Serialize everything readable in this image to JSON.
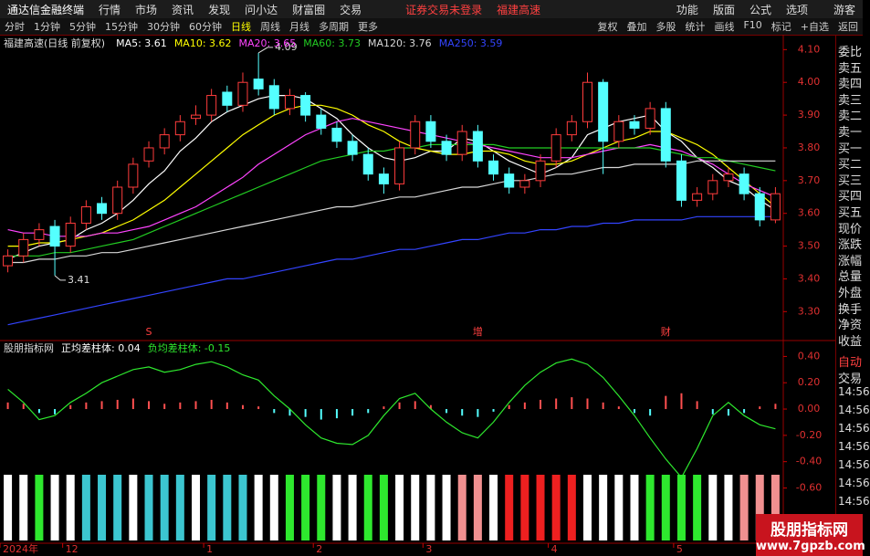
{
  "menu": {
    "logo": "通达信金融终端",
    "items": [
      "行情",
      "市场",
      "资讯",
      "发现",
      "问小达",
      "财富圈",
      "交易"
    ],
    "notice": "证券交易未登录",
    "stock": "福建高速",
    "right": [
      "功能",
      "版面",
      "公式",
      "选项"
    ],
    "user": "游客"
  },
  "toolbar": {
    "periods": [
      "分时",
      "1分钟",
      "5分钟",
      "15分钟",
      "30分钟",
      "60分钟",
      "日线",
      "周线",
      "月线",
      "多周期",
      "更多"
    ],
    "active": 6,
    "tools": [
      "复权",
      "叠加",
      "多股",
      "统计",
      "画线",
      "F10",
      "标记",
      "+自选",
      "返回"
    ]
  },
  "chart_data": [
    {
      "type": "candlestick",
      "title": "福建高速(日线 前复权)",
      "categories": [
        "2024年",
        null,
        null,
        null,
        "12",
        null,
        null,
        null,
        null,
        null,
        null,
        null,
        null,
        "1",
        null,
        null,
        null,
        null,
        null,
        null,
        "2",
        null,
        null,
        null,
        null,
        null,
        null,
        "3",
        null,
        null,
        null,
        null,
        null,
        null,
        null,
        "4",
        null,
        null,
        null,
        null,
        null,
        null,
        null,
        "5",
        null,
        null,
        null,
        null,
        null,
        null
      ],
      "opens": [
        3.44,
        3.47,
        3.52,
        3.56,
        3.5,
        3.57,
        3.63,
        3.6,
        3.68,
        3.76,
        3.8,
        3.84,
        3.89,
        3.9,
        3.97,
        3.93,
        4.01,
        3.99,
        3.92,
        3.96,
        3.9,
        3.86,
        3.82,
        3.78,
        3.72,
        3.69,
        3.8,
        3.88,
        3.82,
        3.78,
        3.85,
        3.76,
        3.72,
        3.68,
        3.7,
        3.76,
        3.84,
        3.88,
        4.0,
        3.82,
        3.88,
        3.86,
        3.92,
        3.76,
        3.64,
        3.66,
        3.7,
        3.72,
        3.66,
        3.58
      ],
      "highs": [
        3.49,
        3.54,
        3.57,
        3.58,
        3.59,
        3.64,
        3.65,
        3.7,
        3.77,
        3.82,
        3.86,
        3.9,
        3.93,
        3.98,
        3.99,
        4.03,
        4.09,
        4.01,
        3.98,
        3.97,
        3.92,
        3.88,
        3.84,
        3.8,
        3.74,
        3.82,
        3.9,
        3.9,
        3.84,
        3.87,
        3.87,
        3.78,
        3.74,
        3.72,
        3.78,
        3.86,
        3.9,
        4.03,
        4.01,
        3.9,
        3.9,
        3.94,
        3.94,
        3.78,
        3.68,
        3.72,
        3.74,
        3.74,
        3.68,
        3.68
      ],
      "lows": [
        3.42,
        3.45,
        3.5,
        3.41,
        3.48,
        3.55,
        3.58,
        3.58,
        3.66,
        3.74,
        3.78,
        3.82,
        3.87,
        3.88,
        3.91,
        3.91,
        3.96,
        3.9,
        3.9,
        3.88,
        3.84,
        3.8,
        3.76,
        3.7,
        3.66,
        3.67,
        3.78,
        3.8,
        3.76,
        3.76,
        3.74,
        3.7,
        3.66,
        3.66,
        3.68,
        3.74,
        3.82,
        3.86,
        3.72,
        3.8,
        3.84,
        3.84,
        3.74,
        3.62,
        3.62,
        3.64,
        3.68,
        3.64,
        3.56,
        3.57
      ],
      "closes": [
        3.47,
        3.52,
        3.55,
        3.5,
        3.57,
        3.62,
        3.6,
        3.68,
        3.75,
        3.8,
        3.84,
        3.88,
        3.9,
        3.96,
        3.93,
        4.0,
        3.98,
        3.92,
        3.96,
        3.9,
        3.86,
        3.82,
        3.78,
        3.72,
        3.69,
        3.8,
        3.88,
        3.82,
        3.78,
        3.85,
        3.76,
        3.72,
        3.68,
        3.7,
        3.76,
        3.84,
        3.88,
        4.0,
        3.82,
        3.88,
        3.86,
        3.92,
        3.76,
        3.64,
        3.66,
        3.7,
        3.72,
        3.66,
        3.58,
        3.66
      ],
      "high_labels": [
        null,
        null,
        null,
        null,
        null,
        null,
        null,
        null,
        null,
        null,
        null,
        null,
        null,
        null,
        null,
        null,
        "4.09",
        null,
        null,
        null,
        null,
        null,
        null,
        null,
        null,
        null,
        null,
        null,
        null,
        null,
        null,
        null,
        null,
        null,
        null,
        null,
        null,
        null,
        null,
        null,
        null,
        null,
        null,
        null,
        null,
        null,
        null,
        null,
        null,
        null
      ],
      "low_labels": [
        null,
        null,
        null,
        "3.41",
        null,
        null,
        null,
        null,
        null,
        null,
        null,
        null,
        null,
        null,
        null,
        null,
        null,
        null,
        null,
        null,
        null,
        null,
        null,
        null,
        null,
        null,
        null,
        null,
        null,
        null,
        null,
        null,
        null,
        null,
        null,
        null,
        null,
        null,
        null,
        null,
        null,
        null,
        null,
        null,
        null,
        null,
        null,
        null,
        null,
        null
      ],
      "event_labels": [
        null,
        null,
        null,
        null,
        null,
        null,
        null,
        null,
        null,
        "S",
        null,
        null,
        null,
        null,
        null,
        null,
        null,
        null,
        null,
        null,
        null,
        null,
        null,
        null,
        null,
        null,
        null,
        null,
        null,
        null,
        "增",
        null,
        null,
        null,
        null,
        null,
        null,
        null,
        null,
        null,
        null,
        null,
        "财",
        null,
        null,
        null,
        null,
        null,
        null,
        null
      ],
      "up_color": "#ff3c3c",
      "down_color": "#54ffff",
      "series": [
        {
          "name": "MA5: 3.61",
          "color": "#ffffff",
          "values": [
            3.46,
            3.48,
            3.5,
            3.51,
            3.52,
            3.55,
            3.57,
            3.6,
            3.64,
            3.69,
            3.73,
            3.79,
            3.83,
            3.88,
            3.91,
            3.93,
            3.95,
            3.96,
            3.96,
            3.95,
            3.92,
            3.89,
            3.84,
            3.8,
            3.77,
            3.76,
            3.77,
            3.79,
            3.79,
            3.83,
            3.82,
            3.79,
            3.76,
            3.74,
            3.72,
            3.74,
            3.77,
            3.84,
            3.86,
            3.88,
            3.89,
            3.9,
            3.85,
            3.82,
            3.77,
            3.74,
            3.7,
            3.68,
            3.64,
            3.61
          ]
        },
        {
          "name": "MA10: 3.62",
          "color": "#ffff00",
          "values": [
            3.5,
            3.5,
            3.51,
            3.51,
            3.52,
            3.53,
            3.54,
            3.56,
            3.58,
            3.61,
            3.64,
            3.68,
            3.72,
            3.76,
            3.8,
            3.84,
            3.87,
            3.9,
            3.92,
            3.93,
            3.93,
            3.92,
            3.9,
            3.87,
            3.85,
            3.82,
            3.8,
            3.79,
            3.78,
            3.78,
            3.79,
            3.79,
            3.78,
            3.76,
            3.75,
            3.75,
            3.76,
            3.78,
            3.8,
            3.82,
            3.83,
            3.85,
            3.85,
            3.83,
            3.81,
            3.78,
            3.74,
            3.7,
            3.66,
            3.62
          ]
        },
        {
          "name": "MA20: 3.65",
          "color": "#ff44ff",
          "values": [
            3.55,
            3.54,
            3.54,
            3.53,
            3.53,
            3.53,
            3.54,
            3.54,
            3.55,
            3.56,
            3.58,
            3.6,
            3.62,
            3.65,
            3.68,
            3.71,
            3.75,
            3.78,
            3.81,
            3.84,
            3.86,
            3.88,
            3.89,
            3.88,
            3.87,
            3.86,
            3.85,
            3.84,
            3.83,
            3.82,
            3.81,
            3.8,
            3.79,
            3.78,
            3.77,
            3.77,
            3.77,
            3.78,
            3.79,
            3.8,
            3.8,
            3.81,
            3.8,
            3.79,
            3.77,
            3.75,
            3.72,
            3.69,
            3.67,
            3.65
          ]
        },
        {
          "name": "MA60: 3.73",
          "color": "#22cc22",
          "values": [
            3.47,
            3.47,
            3.47,
            3.48,
            3.48,
            3.49,
            3.5,
            3.51,
            3.52,
            3.54,
            3.56,
            3.58,
            3.6,
            3.62,
            3.64,
            3.66,
            3.68,
            3.7,
            3.72,
            3.74,
            3.76,
            3.77,
            3.78,
            3.79,
            3.79,
            3.8,
            3.8,
            3.81,
            3.81,
            3.81,
            3.81,
            3.81,
            3.8,
            3.8,
            3.8,
            3.8,
            3.8,
            3.8,
            3.8,
            3.8,
            3.8,
            3.8,
            3.79,
            3.78,
            3.77,
            3.77,
            3.76,
            3.75,
            3.74,
            3.73
          ]
        },
        {
          "name": "MA120: 3.76",
          "color": "#d8d8d8",
          "values": [
            3.45,
            3.45,
            3.46,
            3.46,
            3.47,
            3.47,
            3.48,
            3.48,
            3.49,
            3.5,
            3.51,
            3.52,
            3.53,
            3.54,
            3.55,
            3.56,
            3.57,
            3.58,
            3.59,
            3.6,
            3.61,
            3.62,
            3.62,
            3.63,
            3.64,
            3.65,
            3.65,
            3.66,
            3.67,
            3.68,
            3.68,
            3.69,
            3.7,
            3.7,
            3.71,
            3.72,
            3.72,
            3.73,
            3.74,
            3.74,
            3.75,
            3.75,
            3.75,
            3.75,
            3.76,
            3.76,
            3.76,
            3.76,
            3.76,
            3.76
          ]
        },
        {
          "name": "MA250: 3.59",
          "color": "#3344ff",
          "values": [
            3.26,
            3.27,
            3.28,
            3.29,
            3.3,
            3.31,
            3.32,
            3.33,
            3.34,
            3.35,
            3.36,
            3.37,
            3.38,
            3.39,
            3.4,
            3.4,
            3.41,
            3.42,
            3.43,
            3.44,
            3.45,
            3.46,
            3.46,
            3.47,
            3.48,
            3.49,
            3.49,
            3.5,
            3.51,
            3.52,
            3.52,
            3.53,
            3.54,
            3.54,
            3.55,
            3.55,
            3.56,
            3.56,
            3.57,
            3.57,
            3.58,
            3.58,
            3.58,
            3.58,
            3.59,
            3.59,
            3.59,
            3.59,
            3.59,
            3.59
          ]
        }
      ],
      "ylim": [
        3.22,
        4.14
      ],
      "yticks": [
        {
          "value": 4.1,
          "label": "4.10"
        },
        {
          "value": 4.0,
          "label": "4.00"
        },
        {
          "value": 3.9,
          "label": "3.90"
        },
        {
          "value": 3.8,
          "label": "3.80"
        },
        {
          "value": 3.7,
          "label": "3.70"
        },
        {
          "value": 3.6,
          "label": "3.60"
        },
        {
          "value": 3.5,
          "label": "3.50"
        },
        {
          "value": 3.4,
          "label": "3.40"
        },
        {
          "value": 3.3,
          "label": "3.30"
        }
      ]
    },
    {
      "type": "combo",
      "title": "股朋指标网",
      "series": [
        {
          "name": "正均差柱体: 0.04",
          "type": "bar",
          "color": "#ff5050",
          "negative_color": "#54ffff",
          "label_color": "#ffffff",
          "values": [
            0.05,
            0.04,
            -0.03,
            -0.04,
            0.03,
            0.05,
            0.06,
            0.07,
            0.08,
            0.06,
            0.04,
            0.05,
            0.06,
            0.07,
            0.05,
            0.03,
            0.02,
            -0.03,
            -0.05,
            -0.06,
            -0.08,
            -0.07,
            -0.05,
            -0.03,
            0.02,
            0.05,
            0.06,
            0.03,
            -0.03,
            -0.05,
            -0.06,
            -0.02,
            0.03,
            0.05,
            0.07,
            0.08,
            0.09,
            0.08,
            0.05,
            0.02,
            -0.03,
            -0.05,
            0.1,
            0.12,
            0.06,
            -0.04,
            -0.05,
            -0.03,
            0.02,
            0.04
          ]
        },
        {
          "name": "负均差柱体: -0.15",
          "type": "line",
          "color": "#2ee82e",
          "label_color": "#2ee82e",
          "values": [
            0.15,
            0.05,
            -0.08,
            -0.05,
            0.05,
            0.12,
            0.2,
            0.25,
            0.3,
            0.32,
            0.28,
            0.3,
            0.34,
            0.36,
            0.32,
            0.26,
            0.22,
            0.1,
            0.0,
            -0.12,
            -0.22,
            -0.26,
            -0.27,
            -0.2,
            -0.05,
            0.08,
            0.12,
            0.0,
            -0.1,
            -0.18,
            -0.22,
            -0.1,
            0.05,
            0.18,
            0.28,
            0.35,
            0.38,
            0.34,
            0.24,
            0.1,
            -0.05,
            -0.22,
            -0.38,
            -0.52,
            -0.3,
            -0.05,
            0.05,
            -0.05,
            -0.12,
            -0.15
          ]
        }
      ],
      "signal_colors": [
        "#ffffff",
        "#ffffff",
        "#2ee82e",
        "#ffffff",
        "#ffffff",
        "#3cc6d0",
        "#3cc6d0",
        "#3cc6d0",
        "#ffffff",
        "#3cc6d0",
        "#3cc6d0",
        "#3cc6d0",
        "#ffffff",
        "#3cc6d0",
        "#3cc6d0",
        "#3cc6d0",
        "#ffffff",
        "#ffffff",
        "#2ee82e",
        "#2ee82e",
        "#2ee82e",
        "#ffffff",
        "#ffffff",
        "#2ee82e",
        "#2ee82e",
        "#ffffff",
        "#ffffff",
        "#ffffff",
        "#ffffff",
        "#f09090",
        "#f09090",
        "#ffffff",
        "#ee2020",
        "#ee2020",
        "#ee2020",
        "#ee2020",
        "#ee2020",
        "#ffffff",
        "#ffffff",
        "#ffffff",
        "#ffffff",
        "#2ee82e",
        "#2ee82e",
        "#2ee82e",
        "#2ee82e",
        "#ffffff",
        "#ffffff",
        "#f09090",
        "#f09090",
        "#f09090"
      ],
      "ylim": [
        -1.02,
        0.5
      ],
      "yticks": [
        {
          "value": 0.4,
          "label": "0.40"
        },
        {
          "value": 0.2,
          "label": "0.20"
        },
        {
          "value": 0,
          "label": "0.00"
        },
        {
          "value": -0.2,
          "label": "-0.20"
        },
        {
          "value": -0.4,
          "label": "-0.40"
        },
        {
          "value": -0.6,
          "label": "-0.60"
        }
      ]
    }
  ],
  "right_panel": {
    "quote_labels": [
      "委比",
      "卖五",
      "卖四",
      "卖三",
      "卖二",
      "卖一",
      "买一",
      "买二",
      "买三",
      "买四",
      "买五",
      "现价",
      "涨跌",
      "涨幅",
      "总量",
      "外盘",
      "换手",
      "净资",
      "收益"
    ],
    "trade_labels": [
      "自动",
      "交易"
    ],
    "times": [
      "14:56",
      "14:56",
      "14:56",
      "14:56",
      "14:56",
      "14:56",
      "14:56"
    ]
  },
  "watermark": {
    "name": "股朋指标网",
    "url": "www.7gpzb.com"
  }
}
